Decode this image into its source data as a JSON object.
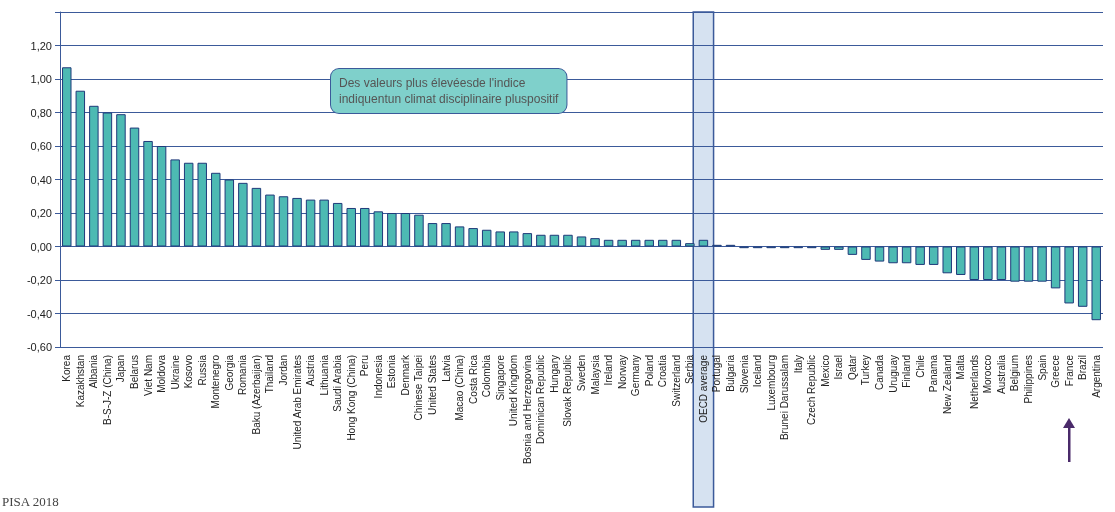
{
  "chart_data": {
    "type": "bar",
    "categories": [
      "Korea",
      "Kazakhstan",
      "Albania",
      "B-S-J-Z (China)",
      "Japan",
      "Belarus",
      "Viet Nam",
      "Moldova",
      "Ukraine",
      "Kosovo",
      "Russia",
      "Montenegro",
      "Georgia",
      "Romania",
      "Baku (Azerbaijan)",
      "Thailand",
      "Jordan",
      "United Arab Emirates",
      "Austria",
      "Lithuania",
      "Saudi Arabia",
      "Hong Kong (China)",
      "Peru",
      "Indonesia",
      "Estonia",
      "Denmark",
      "Chinese Taipei",
      "United States",
      "Latvia",
      "Macao (China)",
      "Costa Rica",
      "Colombia",
      "Singapore",
      "United Kingdom",
      "Bosnia and Herzegovina",
      "Dominican Republic",
      "Hungary",
      "Slovak Republic",
      "Sweden",
      "Malaysia",
      "Ireland",
      "Norway",
      "Germany",
      "Poland",
      "Croatia",
      "Switzerland",
      "Serbia",
      "OECD average",
      "Portugal",
      "Bulgaria",
      "Slovenia",
      "Iceland",
      "Luxembourg",
      "Brunei Darussalam",
      "Italy",
      "Czech Republic",
      "Mexico",
      "Israel",
      "Qatar",
      "Turkey",
      "Canada",
      "Uruguay",
      "Finland",
      "Chile",
      "Panama",
      "New Zealand",
      "Malta",
      "Netherlands",
      "Morocco",
      "Australia",
      "Belgium",
      "Philippines",
      "Spain",
      "Greece",
      "France",
      "Brazil",
      "Argentina"
    ],
    "values": [
      1.07,
      0.93,
      0.84,
      0.8,
      0.79,
      0.71,
      0.63,
      0.6,
      0.52,
      0.5,
      0.5,
      0.44,
      0.4,
      0.38,
      0.35,
      0.31,
      0.3,
      0.29,
      0.28,
      0.28,
      0.26,
      0.23,
      0.23,
      0.21,
      0.2,
      0.2,
      0.19,
      0.14,
      0.14,
      0.12,
      0.11,
      0.1,
      0.09,
      0.09,
      0.08,
      0.07,
      0.07,
      0.07,
      0.06,
      0.05,
      0.04,
      0.04,
      0.04,
      0.04,
      0.04,
      0.04,
      0.02,
      0.04,
      0.01,
      0.01,
      -0.01,
      -0.01,
      -0.01,
      -0.01,
      -0.01,
      -0.01,
      -0.02,
      -0.02,
      -0.05,
      -0.08,
      -0.09,
      -0.1,
      -0.1,
      -0.11,
      -0.11,
      -0.16,
      -0.17,
      -0.2,
      -0.2,
      -0.2,
      -0.21,
      -0.21,
      -0.21,
      -0.25,
      -0.34,
      -0.36,
      -0.44
    ],
    "color": "#4dbab3",
    "ylim": [
      -0.6,
      1.4
    ],
    "yticks": [
      {
        "value": -0.6,
        "label": "-0,60"
      },
      {
        "value": -0.4,
        "label": "-0,40"
      },
      {
        "value": -0.2,
        "label": "-0,20"
      },
      {
        "value": 0,
        "label": "0,00"
      },
      {
        "value": 0.2,
        "label": "0,20"
      },
      {
        "value": 0.4,
        "label": "0,40"
      },
      {
        "value": 0.6,
        "label": "0,60"
      },
      {
        "value": 0.8,
        "label": "0,80"
      },
      {
        "value": 1.0,
        "label": "1,00"
      },
      {
        "value": 1.2,
        "label": "1,20"
      },
      {
        "value": 1.4,
        "label": null
      }
    ],
    "grid": "y",
    "bands": [
      {
        "axis": "x",
        "from": "OECD average",
        "to": "OECD average",
        "color": "#d6e2f1"
      }
    ],
    "annotations": [
      "Des valeurs plus élevéesde l'indice\nindiquentun climat disciplinaire pluspositif",
      "PISA 2018"
    ]
  }
}
